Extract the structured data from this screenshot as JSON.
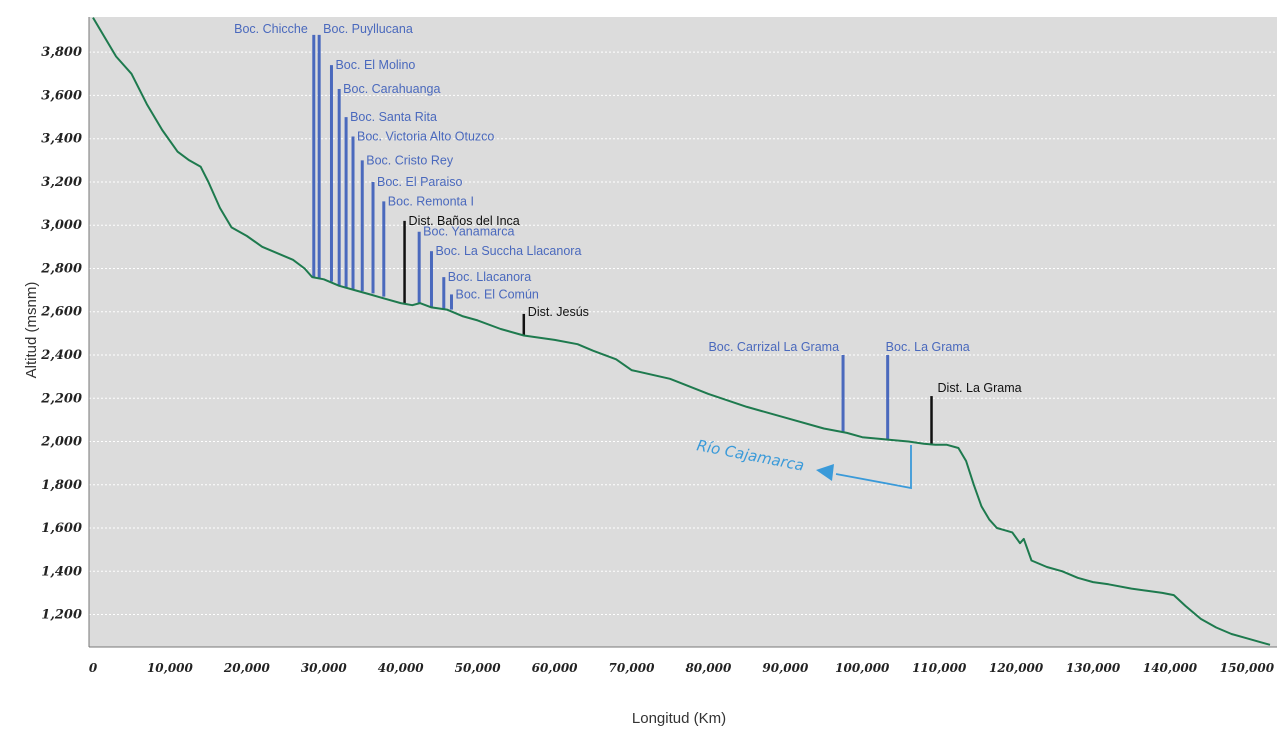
{
  "chart_data": {
    "type": "line",
    "title": "",
    "xlabel": "Longitud (Km)",
    "ylabel": "Altitud (msnm)",
    "xlim": [
      0,
      153000
    ],
    "ylim": [
      1050,
      3970
    ],
    "grid": true,
    "x_ticks": [
      {
        "value": 0,
        "label": "0"
      },
      {
        "value": 10000,
        "label": "10,000"
      },
      {
        "value": 20000,
        "label": "20,000"
      },
      {
        "value": 30000,
        "label": "30,000"
      },
      {
        "value": 40000,
        "label": "40,000"
      },
      {
        "value": 50000,
        "label": "50,000"
      },
      {
        "value": 60000,
        "label": "60,000"
      },
      {
        "value": 70000,
        "label": "70,000"
      },
      {
        "value": 80000,
        "label": "80,000"
      },
      {
        "value": 90000,
        "label": "90,000"
      },
      {
        "value": 100000,
        "label": "100,000"
      },
      {
        "value": 110000,
        "label": "110,000"
      },
      {
        "value": 120000,
        "label": "120,000"
      },
      {
        "value": 130000,
        "label": "130,000"
      },
      {
        "value": 140000,
        "label": "140,000"
      },
      {
        "value": 150000,
        "label": "150,000"
      }
    ],
    "y_ticks": [
      {
        "value": 1200,
        "label": "1,200"
      },
      {
        "value": 1400,
        "label": "1,400"
      },
      {
        "value": 1600,
        "label": "1,600"
      },
      {
        "value": 1800,
        "label": "1,800"
      },
      {
        "value": 2000,
        "label": "2,000"
      },
      {
        "value": 2200,
        "label": "2,200"
      },
      {
        "value": 2400,
        "label": "2,400"
      },
      {
        "value": 2600,
        "label": "2,600"
      },
      {
        "value": 2800,
        "label": "2,800"
      },
      {
        "value": 3000,
        "label": "3,000"
      },
      {
        "value": 3200,
        "label": "3,200"
      },
      {
        "value": 3400,
        "label": "3,400"
      },
      {
        "value": 3600,
        "label": "3,600"
      },
      {
        "value": 3800,
        "label": "3,800"
      }
    ],
    "series": [
      {
        "color": "#1e7a4e",
        "x": [
          0,
          1500,
          3000,
          5000,
          7000,
          9000,
          11000,
          12500,
          14000,
          15000,
          16500,
          18000,
          20000,
          22000,
          24000,
          26000,
          27500,
          28500,
          30000,
          32000,
          34000,
          36000,
          38000,
          40000,
          41500,
          42500,
          44000,
          46000,
          48000,
          50000,
          53000,
          56000,
          60000,
          63000,
          65000,
          68000,
          70000,
          75000,
          80000,
          85000,
          90000,
          95000,
          98000,
          100000,
          103000,
          106000,
          108000,
          109500,
          111000,
          112500,
          113500,
          114500,
          115500,
          116500,
          117500,
          118500,
          119500,
          120500,
          121000,
          122000,
          124000,
          126000,
          128000,
          130000,
          132000,
          135000,
          137000,
          139000,
          140500,
          142000,
          144000,
          146000,
          148000,
          150000,
          152000,
          153000
        ],
        "y": [
          3960,
          3870,
          3780,
          3700,
          3560,
          3440,
          3340,
          3300,
          3270,
          3200,
          3080,
          2990,
          2950,
          2900,
          2870,
          2840,
          2800,
          2760,
          2750,
          2720,
          2700,
          2680,
          2660,
          2640,
          2630,
          2640,
          2620,
          2610,
          2580,
          2560,
          2520,
          2490,
          2470,
          2450,
          2420,
          2380,
          2330,
          2290,
          2220,
          2160,
          2110,
          2060,
          2040,
          2020,
          2010,
          2000,
          1990,
          1985,
          1985,
          1970,
          1910,
          1800,
          1700,
          1640,
          1600,
          1590,
          1580,
          1530,
          1550,
          1450,
          1420,
          1400,
          1370,
          1350,
          1340,
          1320,
          1310,
          1300,
          1290,
          1240,
          1180,
          1140,
          1110,
          1090,
          1070,
          1060
        ]
      }
    ],
    "annotations": [
      {
        "label": "Boc. Chicche",
        "x": 28700,
        "y_top": 3880,
        "y_base": 2760,
        "color": "#4a69bd"
      },
      {
        "label": "Boc. Puyllucana",
        "x": 29400,
        "y_top": 3880,
        "y_base": 2755,
        "color": "#4a69bd"
      },
      {
        "label": "Boc. El Molino",
        "x": 31000,
        "y_top": 3740,
        "y_base": 2740,
        "color": "#4a69bd"
      },
      {
        "label": "Boc. Carahuanga",
        "x": 32000,
        "y_top": 3630,
        "y_base": 2720,
        "color": "#4a69bd"
      },
      {
        "label": "Boc. Santa Rita",
        "x": 32900,
        "y_top": 3500,
        "y_base": 2712,
        "color": "#4a69bd"
      },
      {
        "label": "Boc. Victoria Alto Otuzco",
        "x": 33800,
        "y_top": 3410,
        "y_base": 2705,
        "color": "#4a69bd"
      },
      {
        "label": "Boc. Cristo Rey",
        "x": 35000,
        "y_top": 3300,
        "y_base": 2695,
        "color": "#4a69bd"
      },
      {
        "label": "Boc. El Paraiso",
        "x": 36400,
        "y_top": 3200,
        "y_base": 2685,
        "color": "#4a69bd"
      },
      {
        "label": "Boc. Remonta I",
        "x": 37800,
        "y_top": 3110,
        "y_base": 2670,
        "color": "#4a69bd"
      },
      {
        "label": "Dist. Baños del Inca",
        "x": 40500,
        "y_top": 3020,
        "y_base": 2640,
        "color": "#111111"
      },
      {
        "label": "Boc. Yanamarca",
        "x": 42400,
        "y_top": 2970,
        "y_base": 2640,
        "color": "#4a69bd"
      },
      {
        "label": "Boc. La Succha Llacanora",
        "x": 44000,
        "y_top": 2880,
        "y_base": 2620,
        "color": "#4a69bd"
      },
      {
        "label": "Boc. Llacanora",
        "x": 45600,
        "y_top": 2760,
        "y_base": 2615,
        "color": "#4a69bd"
      },
      {
        "label": "Boc. El Común",
        "x": 46600,
        "y_top": 2680,
        "y_base": 2610,
        "color": "#4a69bd"
      },
      {
        "label": "Dist. Jesús",
        "x": 56000,
        "y_top": 2590,
        "y_base": 2490,
        "color": "#111111"
      },
      {
        "label": "Boc. Carrizal La Grama",
        "x": 97500,
        "y_top": 2400,
        "y_base": 2040,
        "color": "#4a69bd"
      },
      {
        "label": "Boc. La Grama",
        "x": 103300,
        "y_top": 2400,
        "y_base": 2010,
        "color": "#4a69bd"
      },
      {
        "label": "Dist. La Grama",
        "x": 109000,
        "y_top": 2210,
        "y_base": 1988,
        "color": "#111111"
      }
    ],
    "river": {
      "label": "Río Cajamarca",
      "color": "#3a9ad9"
    }
  }
}
